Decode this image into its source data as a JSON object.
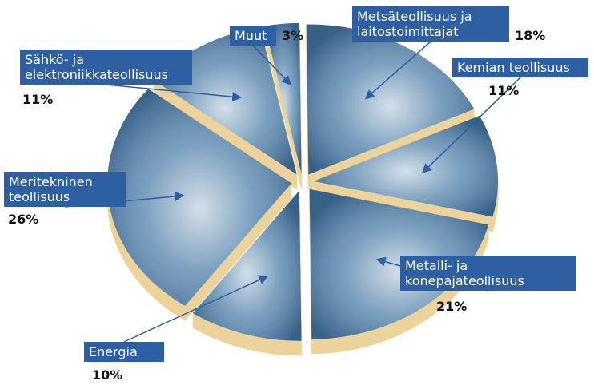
{
  "chart_data": {
    "type": "pie",
    "categories": [
      "Muut",
      "Metsäteollisuus ja laitostoimittajat",
      "Kemian teollisuus",
      "Metalli- ja konepajateollisuus",
      "Energia",
      "Meritekninen teollisuus",
      "Sähkö- ja elektroniikkateollisuus"
    ],
    "values": [
      3,
      18,
      11,
      21,
      10,
      26,
      11
    ],
    "value_labels": [
      "3%",
      "18%",
      "11%",
      "21%",
      "10%",
      "26%",
      "11%"
    ],
    "color": "#4f7fa8",
    "edge_color": "#ecd39b",
    "label_color": "#2e5fa3"
  }
}
